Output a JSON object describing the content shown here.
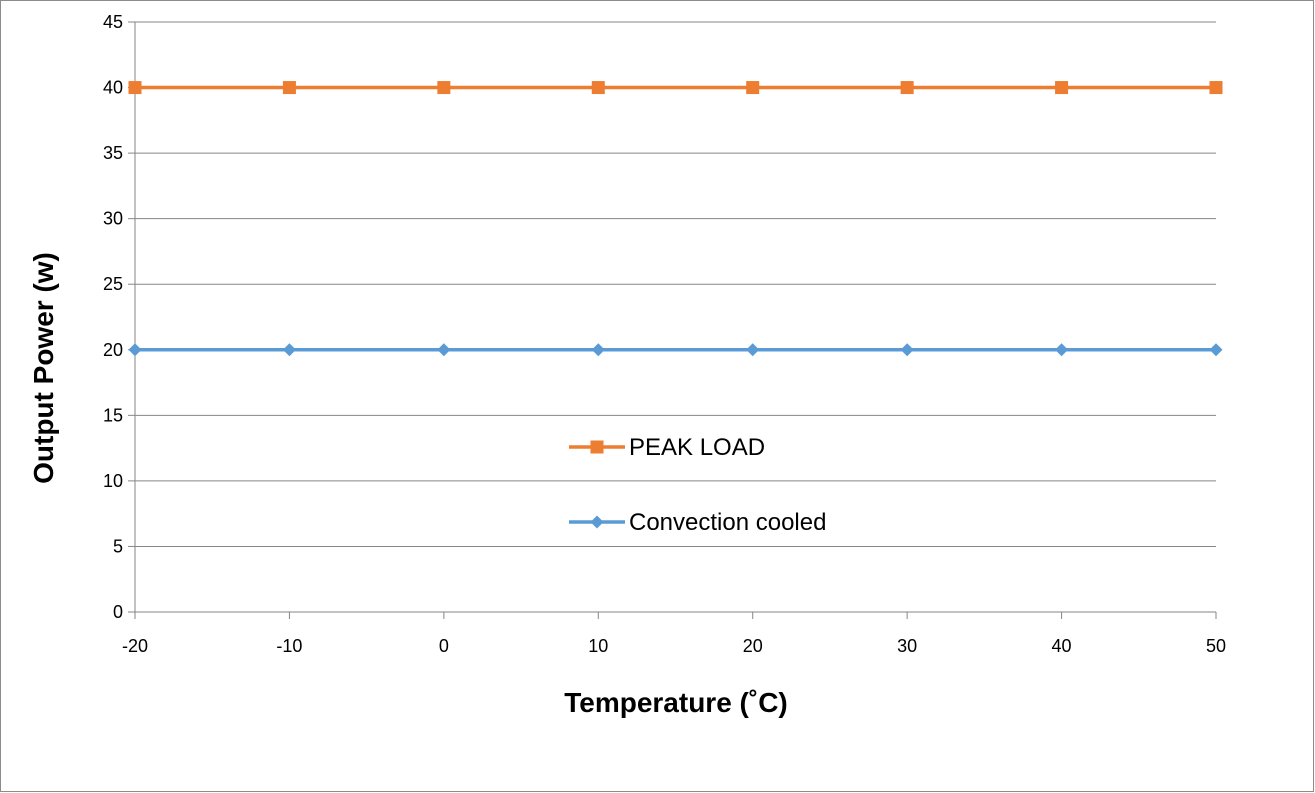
{
  "chart_data": {
    "type": "line",
    "title": "",
    "xlabel": "Temperature (˚C)",
    "ylabel": "Output Power (w)",
    "x": [
      -20,
      -10,
      0,
      10,
      20,
      30,
      40,
      50
    ],
    "xlim": [
      -20,
      50
    ],
    "ylim": [
      0,
      45
    ],
    "x_ticks": [
      "-20",
      "-10",
      "0",
      "10",
      "20",
      "30",
      "40",
      "50"
    ],
    "y_ticks": [
      "0",
      "5",
      "10",
      "15",
      "20",
      "25",
      "30",
      "35",
      "40",
      "45"
    ],
    "grid": "horizontal",
    "legend_position": "center",
    "series": [
      {
        "name": "PEAK LOAD",
        "values": [
          40,
          40,
          40,
          40,
          40,
          40,
          40,
          40
        ],
        "color": "#ed7d31",
        "marker": "square"
      },
      {
        "name": "Convection cooled",
        "values": [
          20,
          20,
          20,
          20,
          20,
          20,
          20,
          20
        ],
        "color": "#5b9bd5",
        "marker": "diamond"
      }
    ]
  }
}
